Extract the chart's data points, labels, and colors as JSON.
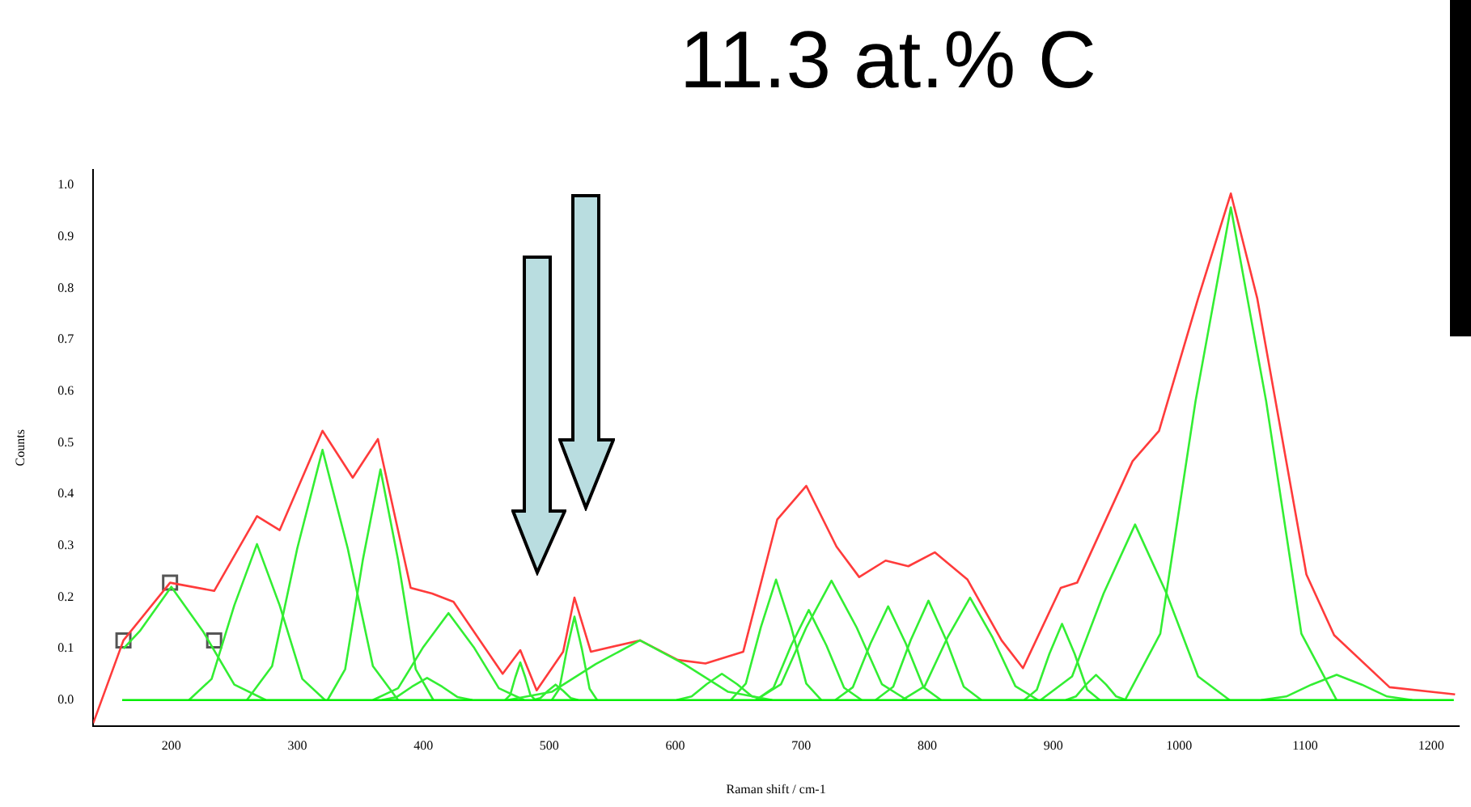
{
  "chart_data": {
    "type": "line",
    "title": "11.3 at.% C",
    "xlabel": "Raman shift / cm-1",
    "ylabel": "Counts",
    "xlim": [
      138,
      1222
    ],
    "ylim": [
      -0.05,
      1.03
    ],
    "xticks": [
      200,
      300,
      400,
      500,
      600,
      700,
      800,
      900,
      1000,
      1100,
      1200
    ],
    "yticks": [
      {
        "value": 0,
        "label": "0.0"
      },
      {
        "value": 0.1,
        "label": "0.1"
      },
      {
        "value": 0.2,
        "label": "0.2"
      },
      {
        "value": 0.3,
        "label": "0.3"
      },
      {
        "value": 0.4,
        "label": "0.4"
      },
      {
        "value": 0.5,
        "label": "0.5"
      },
      {
        "value": 0.6,
        "label": "0.6"
      },
      {
        "value": 0.7,
        "label": "0.7"
      },
      {
        "value": 0.8,
        "label": "0.8"
      },
      {
        "value": 0.9,
        "label": "0.9"
      },
      {
        "value": 1,
        "label": "1.0"
      }
    ],
    "grid": false,
    "legend": false,
    "marker": "none",
    "line_style": "solid",
    "series": [
      {
        "color": "#00ee00",
        "x": [
          161,
          1218
        ],
        "values": [
          0,
          0
        ]
      },
      {
        "color": "#33ee33",
        "x": [
          162,
          175,
          200,
          225,
          250,
          275
        ],
        "values": [
          0.1,
          0.134,
          0.22,
          0.134,
          0.03,
          0
        ]
      },
      {
        "color": "#33ee33",
        "x": [
          214,
          232,
          250,
          268,
          286,
          304,
          322
        ],
        "values": [
          0,
          0.041,
          0.184,
          0.303,
          0.184,
          0.041,
          0
        ]
      },
      {
        "color": "#33ee33",
        "x": [
          260,
          280,
          300,
          320,
          340,
          360,
          380
        ],
        "values": [
          0,
          0.066,
          0.295,
          0.486,
          0.295,
          0.066,
          0
        ]
      },
      {
        "color": "#33ee33",
        "x": [
          324,
          338,
          352,
          366,
          380,
          394,
          408
        ],
        "values": [
          0,
          0.06,
          0.272,
          0.448,
          0.272,
          0.06,
          0
        ]
      },
      {
        "color": "#33ee33",
        "x": [
          360,
          380,
          400,
          420,
          440,
          460,
          480
        ],
        "values": [
          0,
          0.023,
          0.103,
          0.169,
          0.103,
          0.023,
          0
        ]
      },
      {
        "color": "#33ee33",
        "x": [
          367,
          379,
          391,
          403,
          415,
          427,
          439
        ],
        "values": [
          0,
          0.006,
          0.026,
          0.043,
          0.026,
          0.006,
          0
        ]
      },
      {
        "color": "#33ee33",
        "x": [
          465,
          469,
          473,
          477,
          481,
          485,
          489
        ],
        "values": [
          0,
          0.01,
          0.044,
          0.073,
          0.044,
          0.01,
          0
        ]
      },
      {
        "color": "#33ee33",
        "x": [
          502,
          508,
          514,
          520,
          526,
          532,
          538
        ],
        "values": [
          0,
          0.022,
          0.098,
          0.162,
          0.098,
          0.022,
          0
        ]
      },
      {
        "color": "#33ee33",
        "x": [
          487,
          493,
          499,
          505,
          511,
          517,
          523
        ],
        "values": [
          0,
          0.004,
          0.018,
          0.03,
          0.018,
          0.004,
          0
        ]
      },
      {
        "color": "#33ee33",
        "x": [
          467,
          502,
          537,
          572,
          607,
          642,
          677
        ],
        "values": [
          0,
          0.016,
          0.07,
          0.116,
          0.07,
          0.016,
          0
        ]
      },
      {
        "color": "#33ee33",
        "x": [
          601,
          613,
          625,
          637,
          649,
          661,
          673
        ],
        "values": [
          0,
          0.007,
          0.031,
          0.051,
          0.031,
          0.007,
          0
        ]
      },
      {
        "color": "#33ee33",
        "x": [
          644,
          656,
          668,
          680,
          692,
          704,
          716
        ],
        "values": [
          0,
          0.032,
          0.142,
          0.234,
          0.142,
          0.032,
          0
        ]
      },
      {
        "color": "#33ee33",
        "x": [
          664,
          678,
          692,
          706,
          720,
          734,
          748
        ],
        "values": [
          0,
          0.024,
          0.106,
          0.175,
          0.106,
          0.024,
          0
        ]
      },
      {
        "color": "#33ee33",
        "x": [
          664,
          684,
          704,
          724,
          744,
          764,
          784
        ],
        "values": [
          0,
          0.031,
          0.141,
          0.232,
          0.141,
          0.031,
          0
        ]
      },
      {
        "color": "#33ee33",
        "x": [
          727,
          741,
          755,
          769,
          783,
          797,
          811
        ],
        "values": [
          0,
          0.025,
          0.11,
          0.182,
          0.11,
          0.025,
          0
        ]
      },
      {
        "color": "#33ee33",
        "x": [
          759,
          773,
          787,
          801,
          815,
          829,
          843
        ],
        "values": [
          0,
          0.026,
          0.117,
          0.193,
          0.117,
          0.026,
          0
        ]
      },
      {
        "color": "#33ee33",
        "x": [
          780,
          798,
          816,
          834,
          852,
          870,
          888
        ],
        "values": [
          0,
          0.027,
          0.121,
          0.199,
          0.121,
          0.027,
          0
        ]
      },
      {
        "color": "#33ee33",
        "x": [
          877,
          887,
          897,
          907,
          917,
          927,
          937
        ],
        "values": [
          0,
          0.02,
          0.09,
          0.148,
          0.09,
          0.02,
          0
        ]
      },
      {
        "color": "#33ee33",
        "x": [
          910,
          918,
          926,
          934,
          942,
          950,
          958
        ],
        "values": [
          0,
          0.007,
          0.03,
          0.049,
          0.03,
          0.007,
          0
        ]
      },
      {
        "color": "#33ee33",
        "x": [
          890,
          915,
          940,
          965,
          990,
          1015,
          1040
        ],
        "values": [
          0,
          0.046,
          0.207,
          0.341,
          0.207,
          0.046,
          0
        ]
      },
      {
        "color": "#33ee33",
        "x": [
          957,
          985,
          1013,
          1041,
          1069,
          1097,
          1125
        ],
        "values": [
          0,
          0.129,
          0.581,
          0.957,
          0.581,
          0.129,
          0
        ]
      },
      {
        "color": "#33ee33",
        "x": [
          1065,
          1085,
          1105,
          1125,
          1145,
          1165,
          1185
        ],
        "values": [
          0,
          0.007,
          0.03,
          0.049,
          0.03,
          0.007,
          0
        ]
      },
      {
        "color": "#ff3b3b",
        "x": [
          138,
          162,
          199,
          234,
          268,
          286,
          320,
          344,
          364,
          390,
          407,
          424,
          463,
          477,
          490,
          511,
          520,
          533,
          572,
          602,
          624,
          654,
          681,
          704,
          728,
          746,
          767,
          785,
          806,
          832,
          859,
          876,
          906,
          919,
          963,
          984,
          1015,
          1041,
          1062,
          1101,
          1123,
          1167,
          1219
        ],
        "values": [
          -0.045,
          0.116,
          0.228,
          0.212,
          0.357,
          0.33,
          0.523,
          0.432,
          0.507,
          0.218,
          0.207,
          0.191,
          0.051,
          0.097,
          0.019,
          0.094,
          0.199,
          0.094,
          0.116,
          0.078,
          0.071,
          0.094,
          0.351,
          0.416,
          0.298,
          0.239,
          0.271,
          0.26,
          0.287,
          0.234,
          0.116,
          0.062,
          0.218,
          0.228,
          0.464,
          0.523,
          0.78,
          0.984,
          0.78,
          0.244,
          0.126,
          0.025,
          0.011
        ]
      },
      {
        "type": "scatter",
        "marker": "square",
        "color": "#555555",
        "x": [
          162,
          199,
          234
        ],
        "values": [
          0.116,
          0.228,
          0.116
        ]
      }
    ]
  }
}
